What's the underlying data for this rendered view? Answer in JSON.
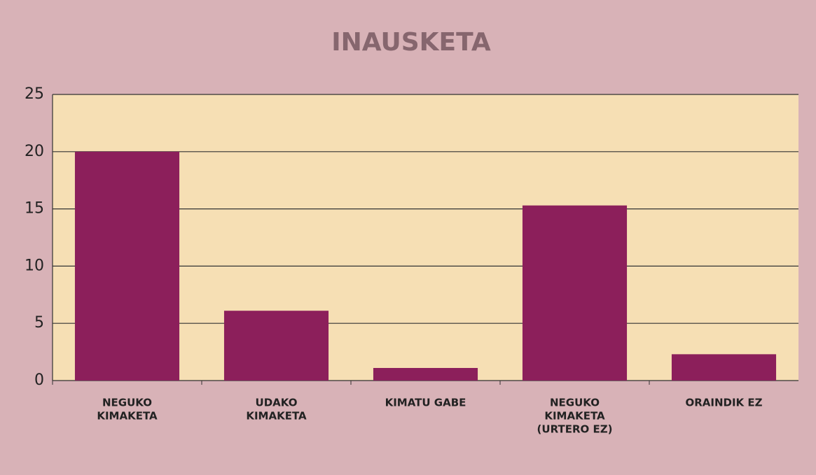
{
  "chart_data": {
    "type": "bar",
    "title": "INAUSKETA",
    "categories": [
      [
        "NEGUKO",
        "KIMAKETA"
      ],
      [
        "UDAKO",
        "KIMAKETA"
      ],
      [
        "KIMATU GABE"
      ],
      [
        "NEGUKO",
        "KIMAKETA",
        "(URTERO EZ)"
      ],
      [
        "ORAINDIK EZ"
      ]
    ],
    "values": [
      20,
      6.1,
      1.1,
      15.3,
      2.3
    ],
    "color": "#8c1f5b",
    "ylim": [
      0,
      25
    ],
    "yticks": [
      0,
      5,
      10,
      15,
      20,
      25
    ],
    "grid": true
  }
}
